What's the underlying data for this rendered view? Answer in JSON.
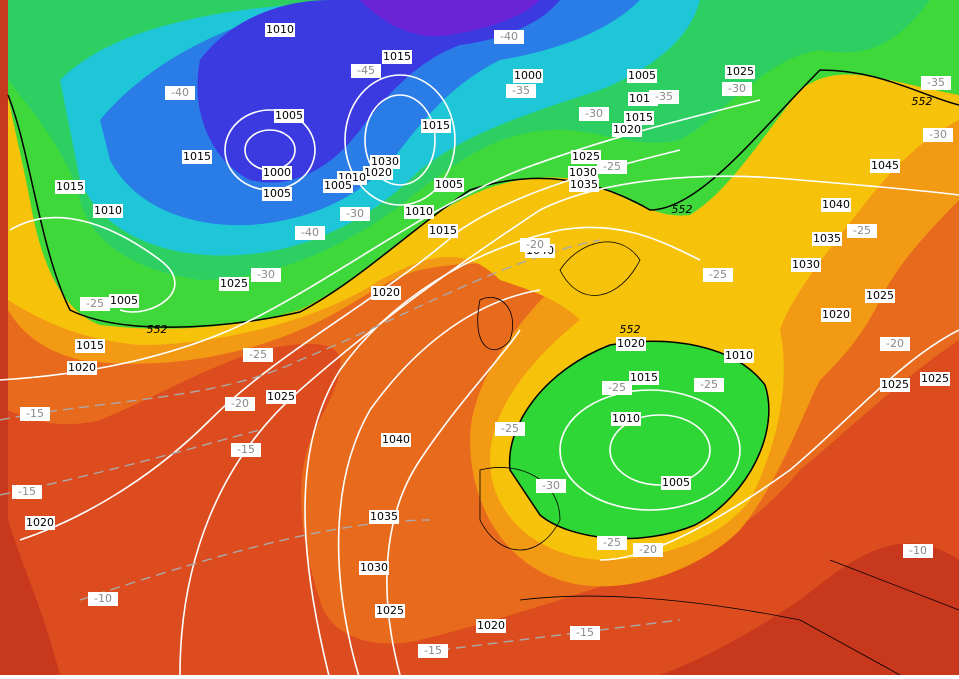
{
  "isobar_labels": [
    "1010",
    "1015",
    "1000",
    "1005",
    "1025",
    "1010",
    "1015",
    "1020",
    "1005",
    "1015",
    "1015",
    "1030",
    "1020",
    "1000",
    "1010",
    "1005",
    "1005",
    "1005",
    "1025",
    "1030",
    "1035",
    "1045",
    "1015",
    "1010",
    "1010",
    "1040",
    "1015",
    "1035",
    "1040",
    "1030",
    "1025",
    "1020",
    "1005",
    "1025",
    "1020",
    "1015",
    "1020",
    "1010",
    "1020",
    "1015",
    "1025",
    "1025",
    "1025",
    "1010",
    "1040",
    "1005",
    "1035",
    "1020",
    "1030",
    "1025",
    "1020"
  ],
  "temperature_labels": [
    "-40",
    "-45",
    "-40",
    "-35",
    "-35",
    "-30",
    "-35",
    "-30",
    "-30",
    "-30",
    "-40",
    "-25",
    "-30",
    "-25",
    "-25",
    "-25",
    "-20",
    "-25",
    "-20",
    "-20",
    "-15",
    "-25",
    "-25",
    "-25",
    "-15",
    "-15",
    "-30",
    "-25",
    "-20",
    "-10",
    "-10",
    "-15",
    "-15"
  ],
  "geopotential_labels": [
    "552",
    "552",
    "552",
    "552"
  ]
}
